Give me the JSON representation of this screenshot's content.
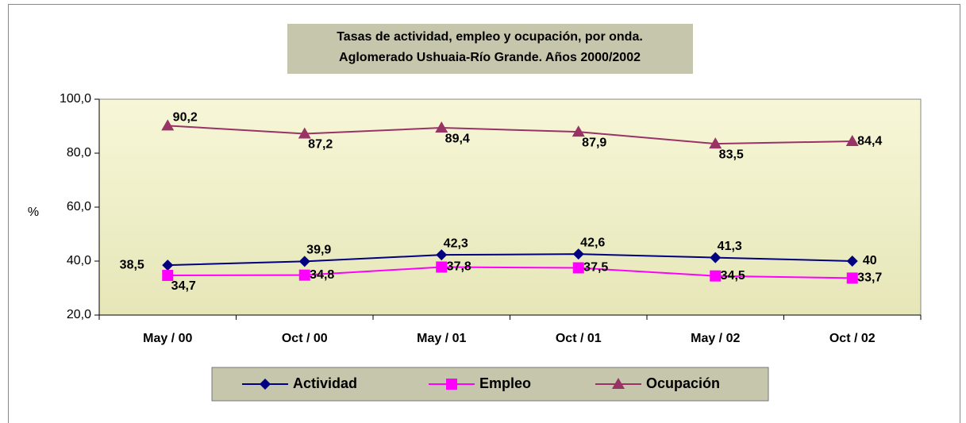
{
  "chart_data": {
    "type": "line",
    "title": "Tasas de actividad, empleo y ocupación, por onda.",
    "subtitle": "Aglomerado Ushuaia-Río Grande. Años 2000/2002",
    "y_label": "%",
    "categories": [
      "May / 00",
      "Oct / 00",
      "May / 01",
      "Oct / 01",
      "May / 02",
      "Oct /  02"
    ],
    "series": [
      {
        "name": "Actividad",
        "color": "#000080",
        "marker": "diamond",
        "values": [
          38.5,
          39.9,
          42.3,
          42.6,
          41.3,
          40
        ],
        "value_labels": [
          "38,5",
          "39,9",
          "42,3",
          "42,6",
          "41,3",
          "40"
        ]
      },
      {
        "name": "Empleo",
        "color": "#ff00ff",
        "marker": "square",
        "values": [
          34.7,
          34.8,
          37.8,
          37.5,
          34.5,
          33.7
        ],
        "value_labels": [
          "34,7",
          "34,8",
          "37,8",
          "37,5",
          "34,5",
          "33,7"
        ]
      },
      {
        "name": "Ocupación",
        "color": "#993366",
        "marker": "triangle",
        "values": [
          90.2,
          87.2,
          89.4,
          87.9,
          83.5,
          84.4
        ],
        "value_labels": [
          "90,2",
          "87,2",
          "89,4",
          "87,9",
          "83,5",
          "84,4"
        ]
      }
    ],
    "ylim": [
      20,
      100
    ],
    "yticks": [
      {
        "value": 20,
        "label": "20,0"
      },
      {
        "value": 40,
        "label": "40,0"
      },
      {
        "value": 60,
        "label": "60,0"
      },
      {
        "value": 80,
        "label": "80,0"
      },
      {
        "value": 100,
        "label": "100,0"
      }
    ],
    "legend": "bottom"
  }
}
